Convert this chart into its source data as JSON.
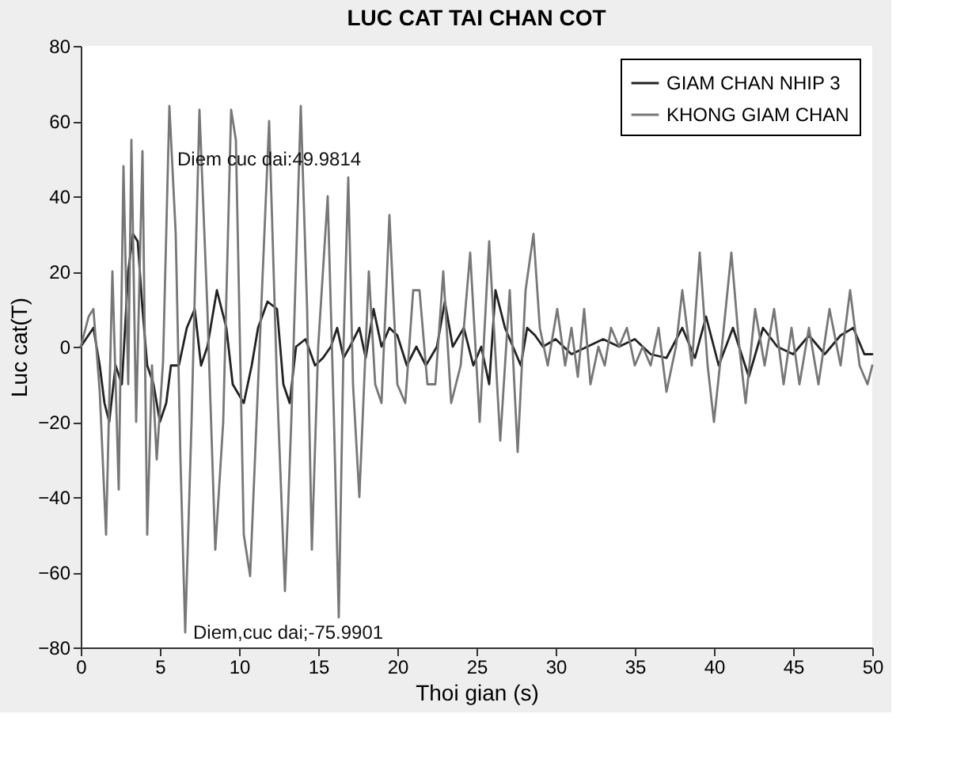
{
  "chart_data": {
    "type": "line",
    "title": "LUC CAT TAI CHAN COT",
    "xlabel": "Thoi gian (s)",
    "ylabel": "Luc cat(T)",
    "xlim": [
      0,
      50
    ],
    "xticks": [
      0,
      5,
      10,
      15,
      20,
      25,
      30,
      35,
      40,
      45,
      50
    ],
    "ylim": [
      -80,
      80
    ],
    "yticks": [
      -80,
      -60,
      -40,
      -20,
      0,
      20,
      40,
      60,
      80
    ],
    "grid": false,
    "legend": "top right",
    "line_style": "solid",
    "annotations": [
      {
        "text": "Diem cuc dai:49.9814",
        "x": 5.6,
        "y": 49.9814
      },
      {
        "text": "Diem,cuc dai;-75.9901",
        "x": 6.6,
        "y": -75.9901
      }
    ],
    "series": [
      {
        "name": "GIAM CHAN NHIP 3",
        "color": "#222222",
        "x": [
          0,
          0.8,
          1.2,
          1.5,
          1.8,
          2.2,
          2.6,
          3.0,
          3.3,
          3.6,
          3.9,
          4.2,
          4.6,
          5.0,
          5.4,
          5.7,
          6.2,
          6.7,
          7.2,
          7.6,
          8.0,
          8.6,
          9.2,
          9.6,
          10.3,
          10.8,
          11.2,
          11.8,
          12.4,
          12.8,
          13.2,
          13.6,
          14.2,
          14.8,
          15.3,
          15.8,
          16.2,
          16.6,
          17.0,
          17.6,
          18.0,
          18.5,
          19.0,
          19.5,
          20.0,
          20.6,
          21.2,
          21.8,
          22.5,
          23.0,
          23.5,
          24.2,
          24.8,
          25.3,
          25.8,
          26.2,
          26.8,
          27.3,
          27.8,
          28.2,
          28.7,
          29.2,
          30,
          31,
          32,
          33,
          34,
          35,
          36,
          37,
          38,
          38.8,
          39.5,
          40.3,
          41.2,
          42.2,
          43.1,
          44,
          45,
          46,
          47,
          48,
          48.8,
          49.5,
          50
        ],
        "values": [
          0,
          5,
          -5,
          -15,
          -20,
          -5,
          -10,
          20,
          30,
          28,
          10,
          -5,
          -10,
          -20,
          -15,
          -5,
          -5,
          5,
          10,
          -5,
          0,
          15,
          5,
          -10,
          -15,
          -5,
          5,
          12,
          10,
          -10,
          -15,
          0,
          2,
          -5,
          -3,
          0,
          5,
          -3,
          0,
          5,
          -3,
          10,
          0,
          5,
          3,
          -5,
          0,
          -5,
          0,
          12,
          0,
          5,
          -5,
          0,
          -10,
          15,
          5,
          0,
          -5,
          5,
          3,
          0,
          2,
          -2,
          0,
          2,
          0,
          2,
          -2,
          -3,
          5,
          -3,
          8,
          -5,
          5,
          -8,
          5,
          0,
          -2,
          3,
          -2,
          3,
          5,
          -2,
          -2
        ]
      },
      {
        "name": "KHONG GIAM CHAN",
        "color": "#777777",
        "x": [
          0,
          0.5,
          0.8,
          1.2,
          1.6,
          2.0,
          2.4,
          2.7,
          3.0,
          3.2,
          3.5,
          3.9,
          4.2,
          4.5,
          4.8,
          5.2,
          5.6,
          6.0,
          6.3,
          6.6,
          7.0,
          7.5,
          8.0,
          8.5,
          9.0,
          9.5,
          9.8,
          10.3,
          10.7,
          11.3,
          11.9,
          12.4,
          12.9,
          13.3,
          13.9,
          14.3,
          14.6,
          15.0,
          15.6,
          16.0,
          16.3,
          16.6,
          16.9,
          17.2,
          17.6,
          18.2,
          18.6,
          19.0,
          19.5,
          20.0,
          20.5,
          21.0,
          21.4,
          21.9,
          22.4,
          22.9,
          23.4,
          24.0,
          24.6,
          25.2,
          25.8,
          26.5,
          27.1,
          27.6,
          28.1,
          28.6,
          29.0,
          29.5,
          30.1,
          30.6,
          31.0,
          31.4,
          31.8,
          32.2,
          32.7,
          33.1,
          33.5,
          34.0,
          34.5,
          35.0,
          35.5,
          36.0,
          36.5,
          37.0,
          37.6,
          38.0,
          38.6,
          39.1,
          39.6,
          40.0,
          40.5,
          41.1,
          41.6,
          42.0,
          42.6,
          43.2,
          43.8,
          44.4,
          44.9,
          45.4,
          46.0,
          46.6,
          47.3,
          48.0,
          48.6,
          49.2,
          49.7,
          50
        ],
        "values": [
          0,
          8,
          10,
          -12,
          -50,
          20,
          -38,
          48,
          -10,
          55,
          -20,
          52,
          -50,
          -5,
          -30,
          -4,
          64,
          30,
          -30,
          -76,
          -20,
          63,
          10,
          -54,
          -20,
          63,
          55,
          -50,
          -61,
          0,
          60,
          -10,
          -65,
          -20,
          64,
          10,
          -54,
          0,
          40,
          -20,
          -72,
          0,
          45,
          -10,
          -40,
          20,
          -10,
          -15,
          35,
          -10,
          -15,
          15,
          15,
          -10,
          -10,
          20,
          -15,
          -5,
          25,
          -20,
          28,
          -25,
          15,
          -28,
          15,
          30,
          5,
          -5,
          10,
          -5,
          5,
          -8,
          10,
          -10,
          0,
          -5,
          5,
          0,
          5,
          -5,
          0,
          -5,
          5,
          -12,
          0,
          15,
          -5,
          25,
          -5,
          -20,
          0,
          25,
          0,
          -15,
          10,
          -5,
          10,
          -10,
          5,
          -10,
          5,
          -10,
          10,
          -5,
          15,
          -5,
          -10,
          -5
        ]
      }
    ]
  }
}
